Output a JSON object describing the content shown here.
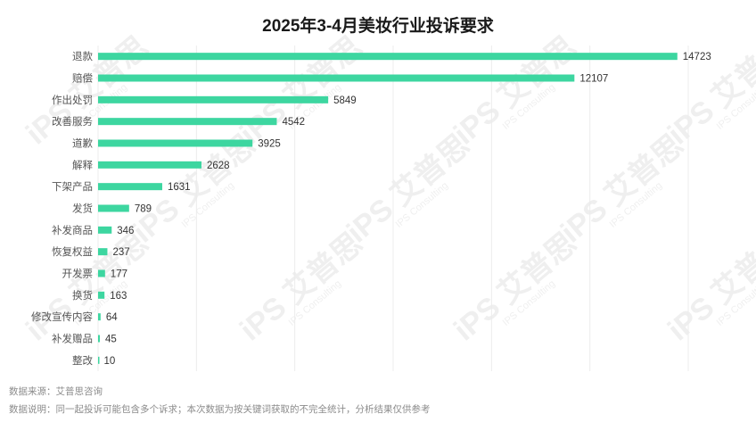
{
  "chart_data": {
    "type": "bar",
    "orientation": "horizontal",
    "title": "2025年3-4月美妆行业投诉要求",
    "categories": [
      "退款",
      "赔偿",
      "作出处罚",
      "改善服务",
      "道歉",
      "解释",
      "下架产品",
      "发货",
      "补发商品",
      "恢复权益",
      "开发票",
      "换货",
      "修改宣传内容",
      "补发赠品",
      "整改"
    ],
    "values": [
      14723,
      12107,
      5849,
      4542,
      3925,
      2628,
      1631,
      789,
      346,
      237,
      177,
      163,
      64,
      45,
      10
    ],
    "xlim": [
      0,
      15000
    ],
    "grid": true,
    "bar_color": "#3dd6a0"
  },
  "footnotes": {
    "source": "数据来源：艾普思咨询",
    "note": "数据说明：同一起投诉可能包含多个诉求；本次数据为按关键词获取的不完全统计，分析结果仅供参考"
  },
  "watermark": {
    "text": "iPS 艾普思",
    "sub": "IPS Consulting"
  }
}
